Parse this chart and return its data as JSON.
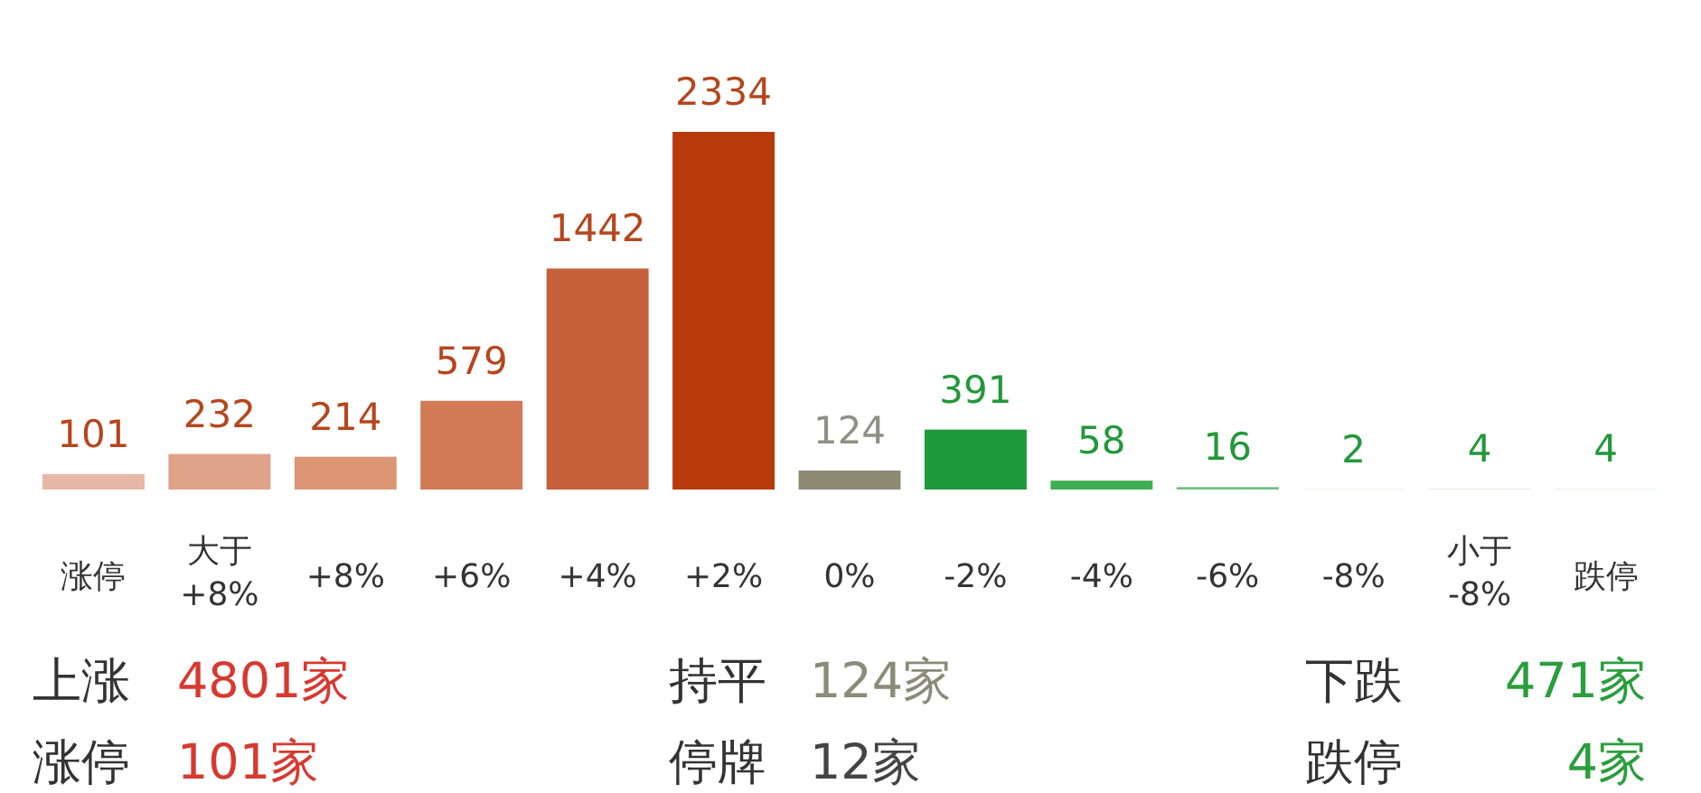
{
  "chart_data": {
    "type": "bar",
    "categories": [
      "涨停",
      "大于\n+8%",
      "+8%",
      "+6%",
      "+4%",
      "+2%",
      "0%",
      "-2%",
      "-4%",
      "-6%",
      "-8%",
      "小于\n-8%",
      "跌停"
    ],
    "values": [
      101,
      232,
      214,
      579,
      1442,
      2334,
      124,
      391,
      58,
      16,
      2,
      4,
      4
    ],
    "colors": [
      "#e6b7a6",
      "#dfa389",
      "#dc9575",
      "#d17a55",
      "#c5603a",
      "#b83a0a",
      "#8d8a72",
      "#1f9a3a",
      "#3fae55",
      "#6cc07c",
      "#bfe0c5",
      "#cfe8d4",
      "#d8ecdc"
    ],
    "data_labels": true,
    "annotations": [
      "上涨",
      "4801家",
      "持平",
      "124家",
      "下跌",
      "471家",
      "涨停",
      "101家",
      "停牌",
      "12家",
      "跌停",
      "4家"
    ]
  }
}
